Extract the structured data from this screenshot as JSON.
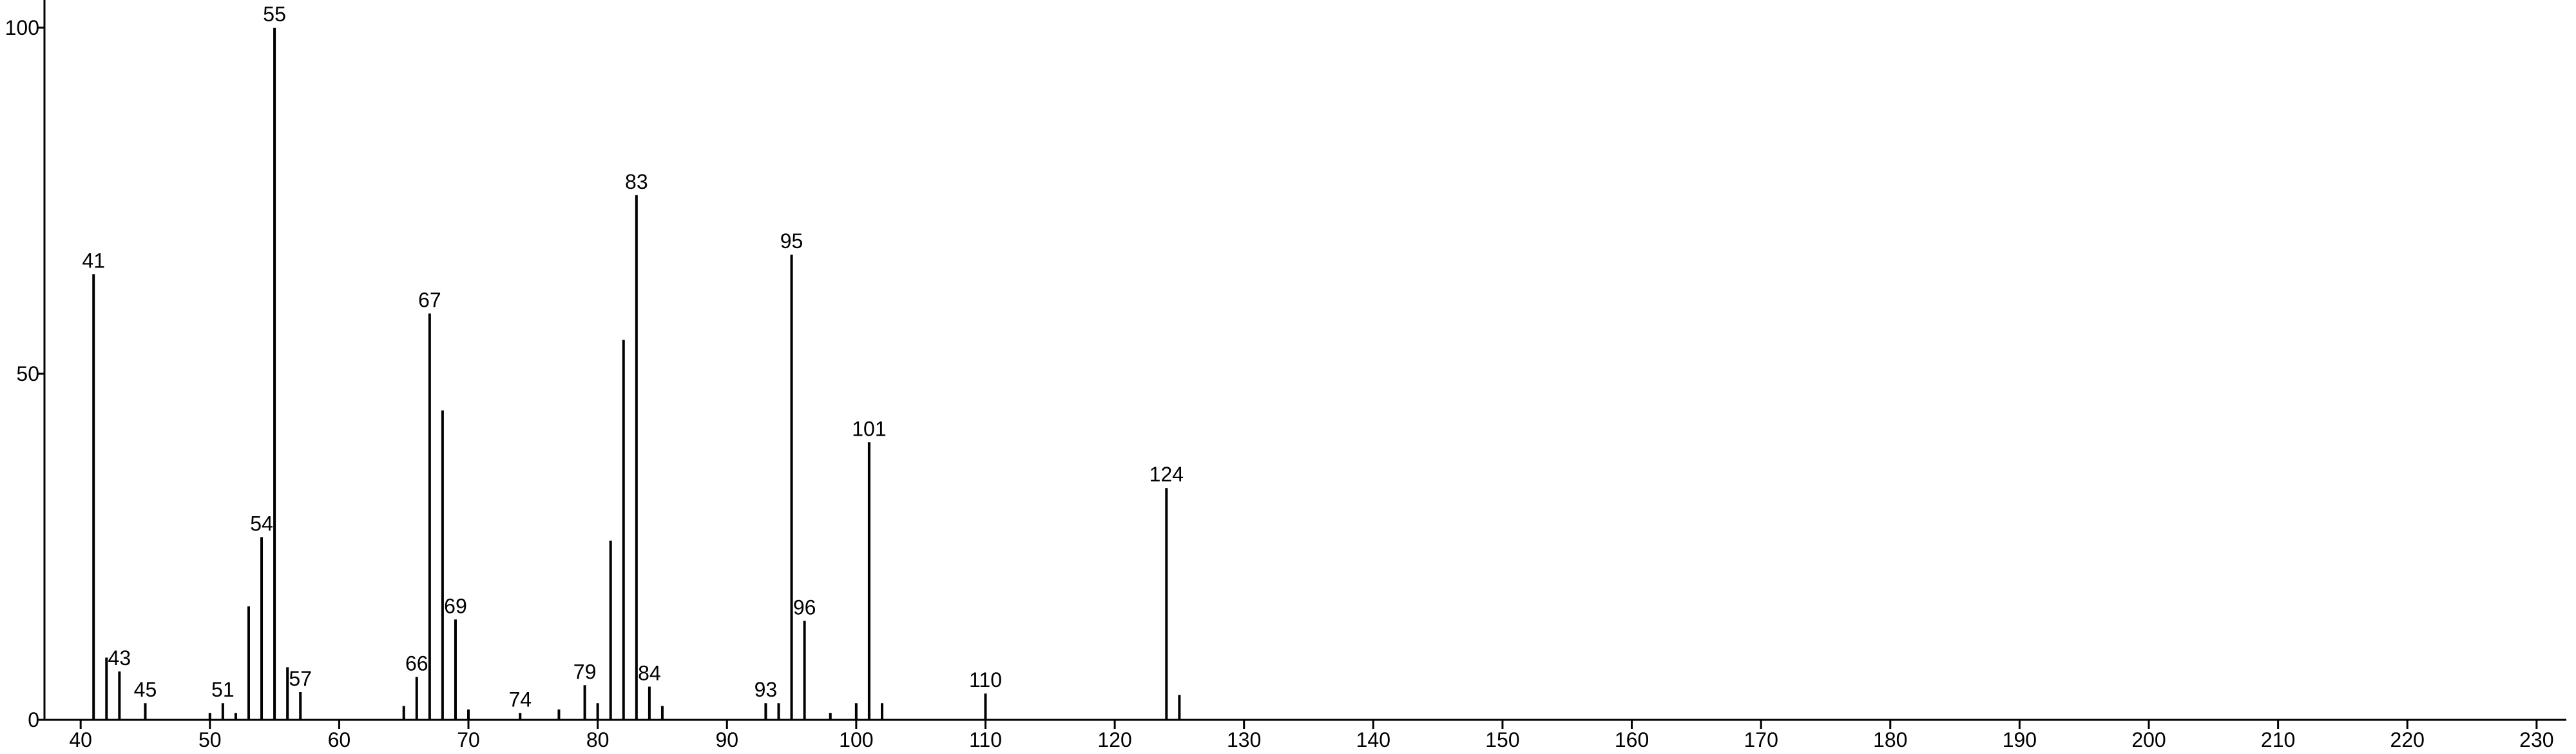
{
  "chart_data": {
    "type": "stem",
    "x": [
      41,
      42,
      43,
      45,
      50,
      51,
      52,
      53,
      54,
      55,
      56,
      57,
      65,
      66,
      67,
      68,
      69,
      70,
      74,
      77,
      79,
      80,
      81,
      82,
      83,
      84,
      85,
      93,
      94,
      95,
      96,
      98,
      100,
      101,
      102,
      110,
      124,
      125
    ],
    "values": [
      64.4,
      9,
      7,
      2.4,
      1,
      2.4,
      1,
      16.4,
      26.4,
      100,
      7.6,
      4,
      2,
      6.2,
      58.7,
      44.7,
      14.5,
      1.5,
      1,
      1.5,
      5,
      2.4,
      25.9,
      54.9,
      75.8,
      4.8,
      2,
      2.4,
      2.4,
      67.2,
      14.3,
      1,
      2.4,
      40.1,
      2.4,
      3.8,
      33.5,
      3.6
    ],
    "point_labels": [
      "41",
      null,
      "43",
      "45",
      null,
      "51",
      null,
      null,
      "54",
      "55",
      null,
      "57",
      null,
      "66",
      "67",
      null,
      "69",
      null,
      "74",
      null,
      "79",
      null,
      null,
      null,
      "83",
      "84",
      null,
      "93",
      null,
      "95",
      "96",
      null,
      null,
      "101",
      null,
      "110",
      "124",
      null
    ],
    "color": "#000000",
    "xlim": [
      37.2,
      232.3
    ],
    "ylim": [
      0,
      104
    ],
    "xticks": [
      40,
      50,
      60,
      70,
      80,
      90,
      100,
      110,
      120,
      130,
      140,
      150,
      160,
      170,
      180,
      190,
      200,
      210,
      220,
      230
    ],
    "yticks": [
      0,
      50,
      100
    ]
  }
}
